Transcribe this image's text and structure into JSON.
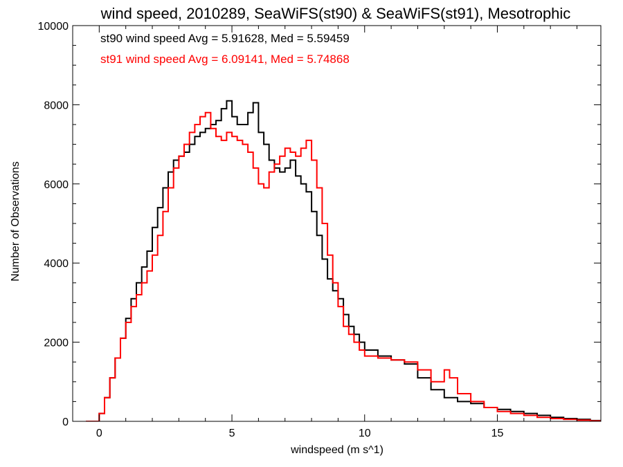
{
  "chart_data": {
    "type": "line",
    "step": true,
    "title": "wind speed, 2010289, SeaWiFS(st90) & SeaWiFS(st91), Mesotrophic",
    "xlabel": "windspeed (m s^1)",
    "ylabel": "Number of Observations",
    "xlim": [
      -1,
      18.9
    ],
    "ylim": [
      0,
      10000
    ],
    "xticks": [
      0,
      5,
      10,
      15
    ],
    "yticks": [
      0,
      2000,
      4000,
      6000,
      8000,
      10000
    ],
    "grid": false,
    "annotations": [
      {
        "text": "st90 wind speed Avg = 5.91628, Med = 5.59459",
        "color": "#000000"
      },
      {
        "text": "st91 wind speed Avg = 6.09141, Med = 5.74868",
        "color": "#ff0000"
      }
    ],
    "series": [
      {
        "color": "#000000",
        "x": [
          -0.5,
          0.0,
          0.2,
          0.4,
          0.6,
          0.8,
          1.0,
          1.2,
          1.4,
          1.6,
          1.8,
          2.0,
          2.2,
          2.4,
          2.6,
          2.8,
          3.0,
          3.2,
          3.4,
          3.6,
          3.8,
          4.0,
          4.2,
          4.4,
          4.6,
          4.8,
          5.0,
          5.2,
          5.4,
          5.6,
          5.8,
          6.0,
          6.2,
          6.4,
          6.6,
          6.8,
          7.0,
          7.2,
          7.4,
          7.6,
          7.8,
          8.0,
          8.2,
          8.4,
          8.6,
          8.8,
          9.0,
          9.2,
          9.4,
          9.6,
          9.8,
          10.0,
          10.5,
          11.0,
          11.5,
          12.0,
          12.5,
          13.0,
          13.5,
          14.0,
          14.5,
          15.0,
          15.5,
          16.0,
          16.5,
          17.0,
          17.5,
          18.0,
          18.5,
          18.9
        ],
        "values": [
          0,
          200,
          600,
          1100,
          1600,
          2100,
          2600,
          3100,
          3500,
          3900,
          4300,
          4900,
          5400,
          5900,
          6300,
          6600,
          6700,
          6800,
          7000,
          7200,
          7300,
          7400,
          7500,
          7600,
          7900,
          8100,
          7700,
          7500,
          7500,
          7800,
          8050,
          7300,
          7000,
          6600,
          6400,
          6300,
          6400,
          6600,
          6200,
          6000,
          5800,
          5300,
          4700,
          4100,
          3600,
          3300,
          3100,
          2700,
          2400,
          2200,
          2000,
          1800,
          1650,
          1550,
          1450,
          1100,
          800,
          600,
          500,
          450,
          350,
          300,
          250,
          200,
          150,
          100,
          70,
          50,
          20,
          0
        ]
      },
      {
        "color": "#ff0000",
        "x": [
          -0.5,
          0.0,
          0.2,
          0.4,
          0.6,
          0.8,
          1.0,
          1.2,
          1.4,
          1.6,
          1.8,
          2.0,
          2.2,
          2.4,
          2.6,
          2.8,
          3.0,
          3.2,
          3.4,
          3.6,
          3.8,
          4.0,
          4.2,
          4.4,
          4.6,
          4.8,
          5.0,
          5.2,
          5.4,
          5.6,
          5.8,
          6.0,
          6.2,
          6.4,
          6.6,
          6.8,
          7.0,
          7.2,
          7.4,
          7.6,
          7.8,
          8.0,
          8.2,
          8.4,
          8.6,
          8.8,
          9.0,
          9.2,
          9.4,
          9.6,
          9.8,
          10.0,
          10.5,
          11.0,
          11.5,
          12.0,
          12.5,
          13.0,
          13.2,
          13.5,
          14.0,
          14.5,
          15.0,
          15.5,
          16.0,
          16.5,
          17.0,
          17.5,
          18.0,
          18.5,
          18.9
        ],
        "values": [
          0,
          200,
          600,
          1100,
          1600,
          2100,
          2500,
          2900,
          3200,
          3500,
          3800,
          4200,
          4700,
          5300,
          5900,
          6400,
          6700,
          7000,
          7300,
          7500,
          7700,
          7800,
          7400,
          7200,
          7100,
          7300,
          7200,
          7100,
          7000,
          6800,
          6400,
          6000,
          5900,
          6300,
          6500,
          6700,
          6900,
          6800,
          6700,
          6900,
          7100,
          6600,
          5900,
          5000,
          4200,
          3500,
          2900,
          2400,
          2200,
          2000,
          1800,
          1650,
          1600,
          1550,
          1500,
          1300,
          1000,
          1300,
          1100,
          700,
          500,
          350,
          250,
          200,
          150,
          100,
          70,
          50,
          30,
          10,
          0
        ]
      }
    ]
  }
}
